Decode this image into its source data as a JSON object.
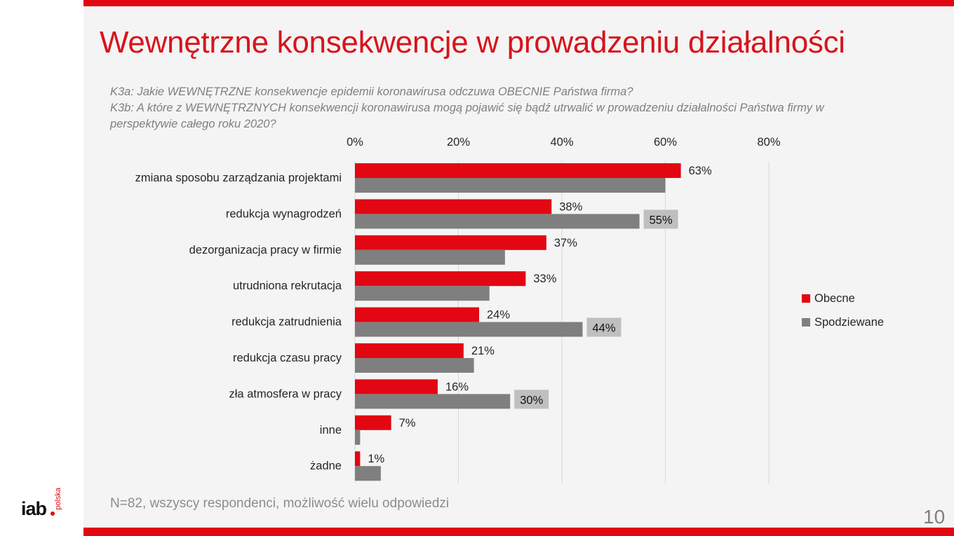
{
  "title": "Wewnętrzne konsekwencje w prowadzeniu działalności",
  "question_1": "K3a: Jakie WEWNĘTRZNE konsekwencje epidemii koronawirusa odczuwa OBECNIE Państwa firma?",
  "question_2": "K3b: A które z WEWNĘTRZNYCH konsekwencji koronawirusa mogą pojawić się bądź utrwalić w prowadzeniu działalności Państwa firmy w perspektywie całego roku 2020?",
  "footnote": "N=82, wszyscy respondenci, możliwość wielu odpowiedzi",
  "page_number": "10",
  "logo": {
    "main": "iab",
    "sub": "polska"
  },
  "colors": {
    "accent": "#e30613",
    "obecne": "#e30613",
    "spodziewane": "#7f7f7f",
    "highlight_box": "#bfbfbf"
  },
  "chart_data": {
    "type": "bar",
    "orientation": "horizontal",
    "title": "",
    "xlabel": "",
    "ylabel": "",
    "xlim": [
      0,
      80
    ],
    "xticks": [
      0,
      20,
      40,
      60,
      80
    ],
    "xtick_labels": [
      "0%",
      "20%",
      "40%",
      "60%",
      "80%"
    ],
    "categories": [
      "zmiana sposobu zarządzania projektami",
      "redukcja wynagrodzeń",
      "dezorganizacja pracy w firmie",
      "utrudniona rekrutacja",
      "redukcja zatrudnienia",
      "redukcja czasu pracy",
      "zła atmosfera w pracy",
      "inne",
      "żadne"
    ],
    "series": [
      {
        "name": "Obecne",
        "color": "#e30613",
        "values": [
          63,
          38,
          37,
          33,
          24,
          21,
          16,
          7,
          1
        ],
        "labels": [
          "63%",
          "38%",
          "37%",
          "33%",
          "24%",
          "21%",
          "16%",
          "7%",
          "1%"
        ]
      },
      {
        "name": "Spodziewane",
        "color": "#7f7f7f",
        "values": [
          60,
          55,
          29,
          26,
          44,
          23,
          30,
          1,
          5
        ],
        "labels": [
          "",
          "55%",
          "",
          "",
          "44%",
          "",
          "30%",
          "",
          ""
        ]
      }
    ],
    "legend": {
      "position": "right",
      "entries": [
        "Obecne",
        "Spodziewane"
      ]
    },
    "grid": true
  }
}
